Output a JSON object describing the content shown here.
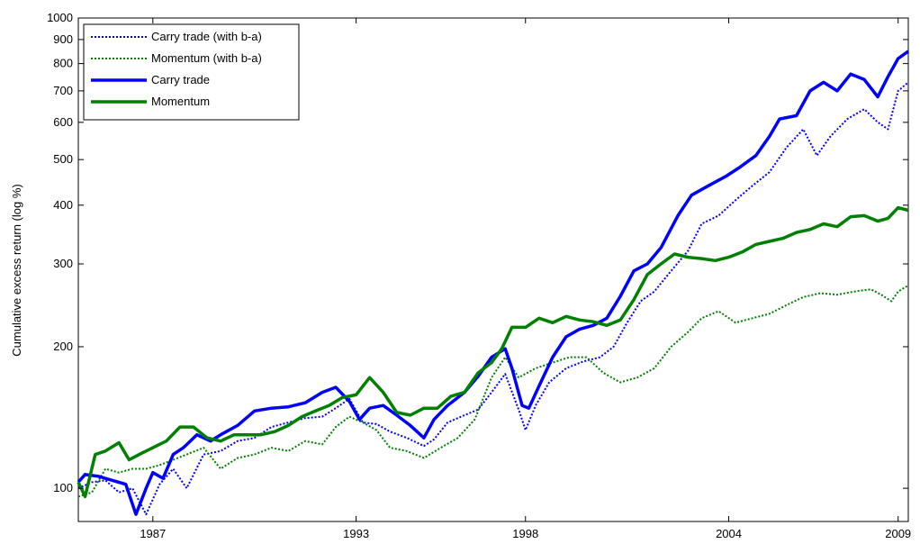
{
  "chart_data": {
    "type": "line",
    "title": "",
    "xlabel": "",
    "ylabel": "Cumulative excess return (log %)",
    "y_scale": "log",
    "ylim": [
      85,
      1000
    ],
    "xlim": [
      1984.8,
      2009.3
    ],
    "x_ticks": [
      1987,
      1993,
      1998,
      2004,
      2009
    ],
    "x_tick_labels": [
      "1987",
      "1993",
      "1998",
      "2004",
      "2009"
    ],
    "y_ticks": [
      100,
      200,
      300,
      400,
      500,
      600,
      700,
      800,
      900,
      1000
    ],
    "y_tick_labels": [
      "100",
      "200",
      "300",
      "400",
      "500",
      "600",
      "700",
      "800",
      "900",
      "1000"
    ],
    "grid": false,
    "legend_position": "top-left",
    "series": [
      {
        "name": "Carry trade (with b-a)",
        "color": "#0000ff",
        "style": "dotted",
        "x": [
          1984.8,
          1985.2,
          1985.6,
          1986.0,
          1986.4,
          1986.8,
          1987.2,
          1987.6,
          1988.0,
          1988.5,
          1989.0,
          1989.5,
          1990.0,
          1990.5,
          1991.0,
          1991.5,
          1992.0,
          1992.4,
          1992.8,
          1993.2,
          1993.6,
          1994.0,
          1994.5,
          1995.0,
          1995.3,
          1995.7,
          1996.2,
          1996.6,
          1997.0,
          1997.4,
          1997.8,
          1998.0,
          1998.3,
          1998.7,
          1999.2,
          1999.7,
          2000.2,
          2000.6,
          2001.0,
          2001.4,
          2001.8,
          2002.3,
          2002.8,
          2003.2,
          2003.7,
          2004.2,
          2004.7,
          2005.2,
          2005.7,
          2006.2,
          2006.6,
          2007.0,
          2007.5,
          2008.0,
          2008.4,
          2008.7,
          2009.0,
          2009.3
        ],
        "values": [
          100,
          103,
          104,
          98,
          100,
          88,
          102,
          110,
          100,
          118,
          120,
          126,
          128,
          135,
          138,
          141,
          142,
          148,
          155,
          138,
          137,
          132,
          128,
          123,
          127,
          138,
          143,
          147,
          160,
          175,
          147,
          133,
          150,
          168,
          180,
          186,
          190,
          200,
          225,
          250,
          262,
          290,
          320,
          365,
          380,
          410,
          440,
          470,
          530,
          580,
          510,
          560,
          610,
          640,
          600,
          580,
          700,
          730
        ]
      },
      {
        "name": "Momentum (with b-a)",
        "color": "#008000",
        "style": "dotted",
        "x": [
          1984.8,
          1985.2,
          1985.6,
          1986.0,
          1986.4,
          1986.8,
          1987.2,
          1987.6,
          1988.0,
          1988.5,
          1989.0,
          1989.5,
          1990.0,
          1990.5,
          1991.0,
          1991.5,
          1992.0,
          1992.4,
          1992.8,
          1993.2,
          1993.6,
          1994.0,
          1994.5,
          1995.0,
          1995.5,
          1996.0,
          1996.5,
          1997.0,
          1997.4,
          1997.8,
          1998.3,
          1998.8,
          1999.3,
          1999.8,
          2000.3,
          2000.8,
          2001.3,
          2001.8,
          2002.3,
          2002.8,
          2003.2,
          2003.7,
          2004.2,
          2004.7,
          2005.2,
          2005.7,
          2006.2,
          2006.7,
          2007.2,
          2007.7,
          2008.2,
          2008.5,
          2008.8,
          2009.0,
          2009.3
        ],
        "values": [
          96,
          98,
          110,
          108,
          110,
          110,
          112,
          115,
          118,
          122,
          110,
          116,
          118,
          122,
          120,
          126,
          124,
          135,
          142,
          138,
          133,
          122,
          120,
          116,
          122,
          128,
          140,
          172,
          190,
          172,
          180,
          185,
          190,
          190,
          176,
          168,
          172,
          180,
          200,
          215,
          230,
          238,
          225,
          230,
          235,
          245,
          255,
          260,
          258,
          262,
          265,
          258,
          250,
          262,
          270
        ]
      },
      {
        "name": "Carry trade",
        "color": "#0000ff",
        "style": "solid",
        "x": [
          1984.8,
          1985.0,
          1985.4,
          1985.8,
          1986.2,
          1986.5,
          1986.8,
          1987.0,
          1987.3,
          1987.6,
          1987.9,
          1988.3,
          1988.7,
          1989.0,
          1989.5,
          1990.0,
          1990.5,
          1991.0,
          1991.5,
          1992.0,
          1992.4,
          1992.8,
          1993.1,
          1993.4,
          1993.8,
          1994.2,
          1994.6,
          1995.0,
          1995.3,
          1995.7,
          1996.2,
          1996.6,
          1997.0,
          1997.4,
          1997.6,
          1997.9,
          1998.1,
          1998.4,
          1998.8,
          1999.2,
          1999.6,
          2000.0,
          2000.4,
          2000.8,
          2001.2,
          2001.6,
          2002.0,
          2002.5,
          2002.9,
          2003.4,
          2003.9,
          2004.3,
          2004.8,
          2005.2,
          2005.5,
          2006.0,
          2006.4,
          2006.8,
          2007.2,
          2007.6,
          2008.0,
          2008.4,
          2008.7,
          2009.0,
          2009.3
        ],
        "values": [
          103,
          107,
          106,
          104,
          102,
          88,
          100,
          108,
          105,
          118,
          122,
          130,
          126,
          130,
          136,
          146,
          148,
          149,
          152,
          160,
          164,
          153,
          140,
          148,
          150,
          143,
          136,
          128,
          140,
          150,
          160,
          173,
          190,
          198,
          180,
          150,
          148,
          165,
          190,
          210,
          218,
          222,
          230,
          256,
          290,
          300,
          325,
          380,
          420,
          440,
          460,
          480,
          510,
          560,
          610,
          620,
          700,
          730,
          700,
          760,
          740,
          680,
          750,
          820,
          850
        ]
      },
      {
        "name": "Momentum",
        "color": "#008000",
        "style": "solid",
        "x": [
          1984.8,
          1985.0,
          1985.3,
          1985.6,
          1986.0,
          1986.3,
          1986.6,
          1987.0,
          1987.4,
          1987.8,
          1988.2,
          1988.6,
          1989.0,
          1989.4,
          1989.8,
          1990.2,
          1990.6,
          1991.0,
          1991.4,
          1991.8,
          1992.2,
          1992.6,
          1993.0,
          1993.4,
          1993.8,
          1994.2,
          1994.6,
          1995.0,
          1995.4,
          1995.8,
          1996.2,
          1996.6,
          1997.0,
          1997.3,
          1997.6,
          1998.0,
          1998.4,
          1998.8,
          1999.2,
          1999.6,
          2000.0,
          2000.4,
          2000.8,
          2001.2,
          2001.6,
          2002.0,
          2002.4,
          2002.8,
          2003.2,
          2003.6,
          2004.0,
          2004.4,
          2004.8,
          2005.2,
          2005.6,
          2006.0,
          2006.4,
          2006.8,
          2007.2,
          2007.6,
          2008.0,
          2008.4,
          2008.7,
          2009.0,
          2009.3
        ],
        "values": [
          103,
          96,
          118,
          120,
          125,
          115,
          118,
          122,
          126,
          135,
          135,
          128,
          126,
          130,
          130,
          130,
          132,
          136,
          142,
          146,
          150,
          156,
          158,
          172,
          160,
          145,
          143,
          148,
          148,
          157,
          160,
          176,
          185,
          198,
          220,
          220,
          230,
          225,
          232,
          228,
          226,
          222,
          228,
          252,
          285,
          300,
          315,
          310,
          308,
          305,
          310,
          318,
          330,
          335,
          340,
          350,
          355,
          365,
          360,
          378,
          380,
          370,
          375,
          395,
          390
        ]
      }
    ]
  }
}
